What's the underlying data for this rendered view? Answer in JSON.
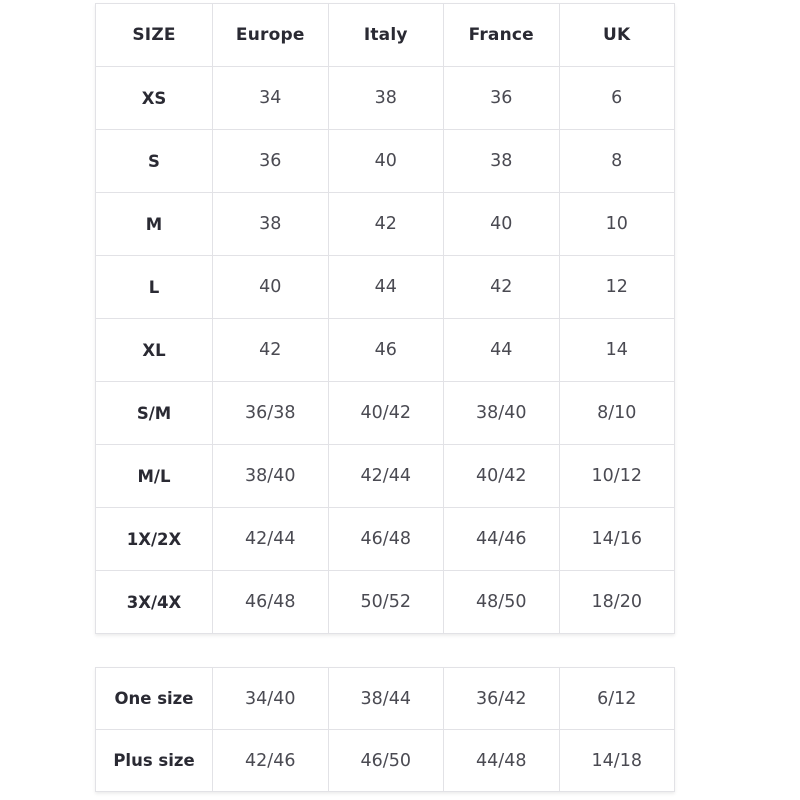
{
  "colors": {
    "background": "#ffffff",
    "border": "#e2e2e6",
    "label_text": "#2a2a33",
    "value_text": "#4a4a52"
  },
  "size_chart": {
    "columns": [
      "SIZE",
      "Europe",
      "Italy",
      "France",
      "UK"
    ],
    "rows": [
      {
        "label": "XS",
        "values": [
          "34",
          "38",
          "36",
          "6"
        ]
      },
      {
        "label": "S",
        "values": [
          "36",
          "40",
          "38",
          "8"
        ]
      },
      {
        "label": "M",
        "values": [
          "38",
          "42",
          "40",
          "10"
        ]
      },
      {
        "label": "L",
        "values": [
          "40",
          "44",
          "42",
          "12"
        ]
      },
      {
        "label": "XL",
        "values": [
          "42",
          "46",
          "44",
          "14"
        ]
      },
      {
        "label": "S/M",
        "values": [
          "36/38",
          "40/42",
          "38/40",
          "8/10"
        ]
      },
      {
        "label": "M/L",
        "values": [
          "38/40",
          "42/44",
          "40/42",
          "10/12"
        ]
      },
      {
        "label": "1X/2X",
        "values": [
          "42/44",
          "46/48",
          "44/46",
          "14/16"
        ]
      },
      {
        "label": "3X/4X",
        "values": [
          "46/48",
          "50/52",
          "48/50",
          "18/20"
        ]
      }
    ]
  },
  "special_sizes": {
    "rows": [
      {
        "label": "One size",
        "values": [
          "34/40",
          "38/44",
          "36/42",
          "6/12"
        ]
      },
      {
        "label": "Plus size",
        "values": [
          "42/46",
          "46/50",
          "44/48",
          "14/18"
        ]
      }
    ]
  }
}
